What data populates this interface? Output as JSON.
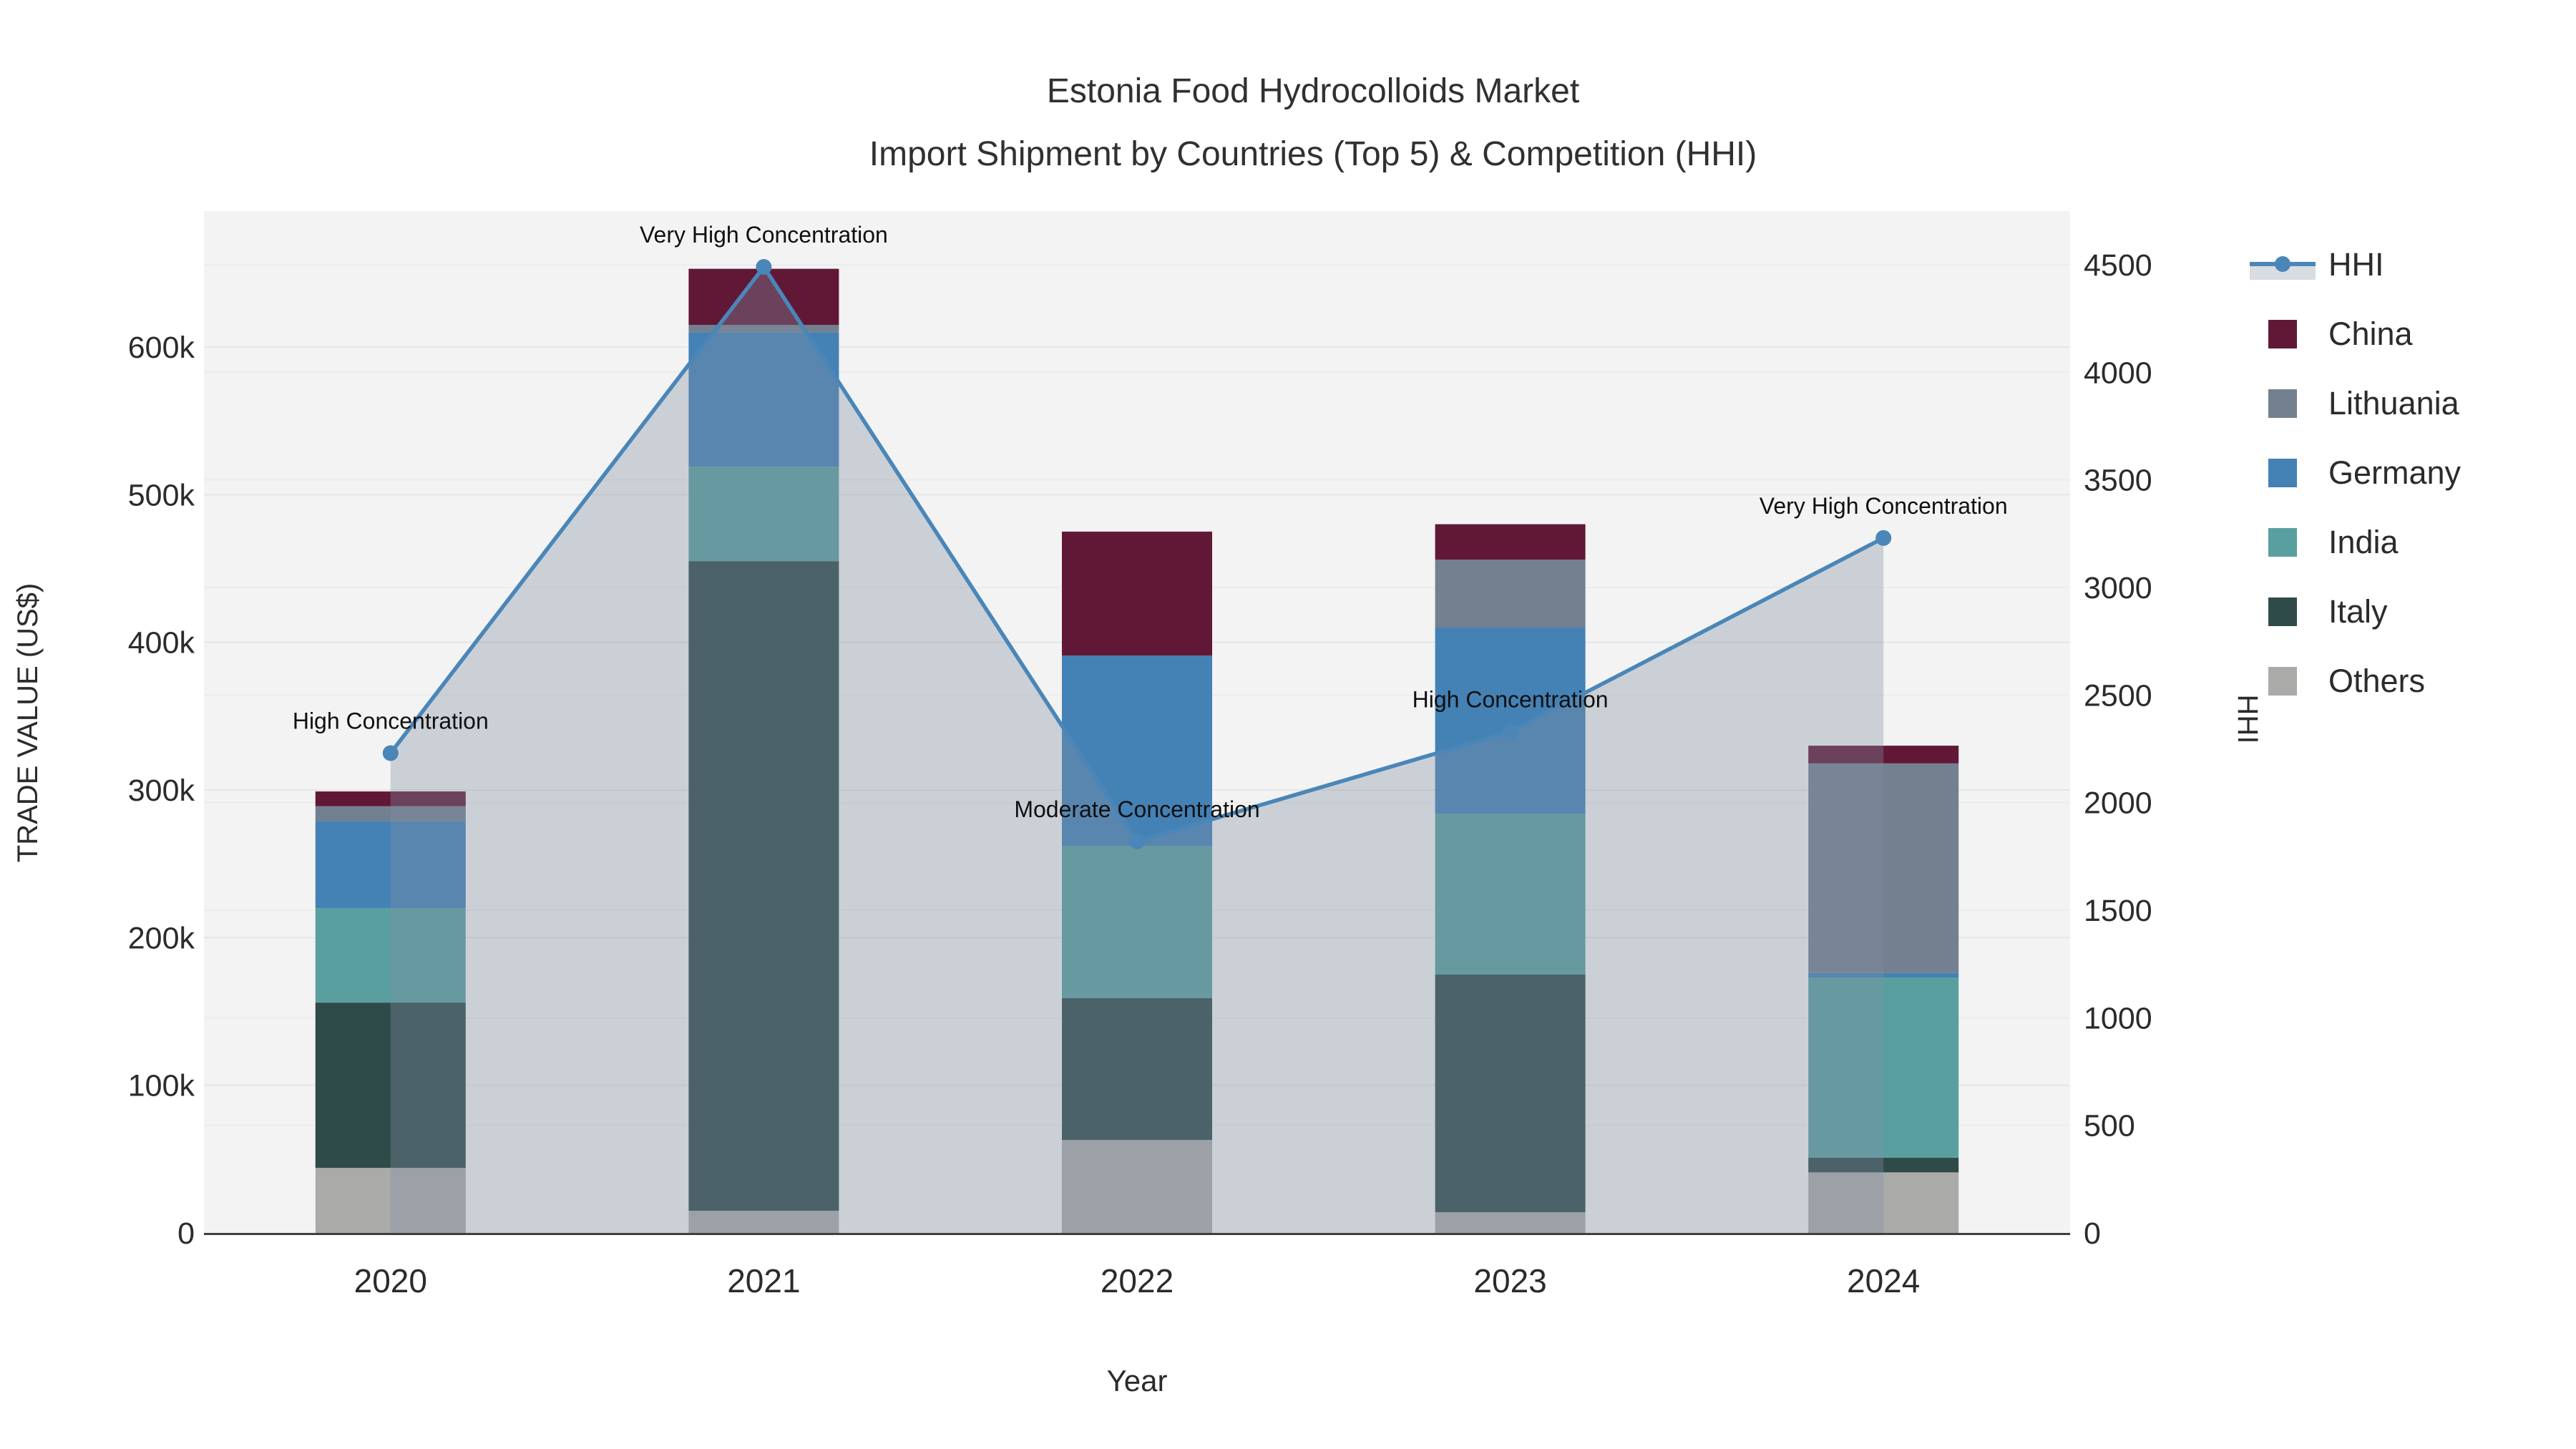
{
  "title": {
    "line1": "Estonia Food Hydrocolloids Market",
    "line2": "Import Shipment by Countries (Top 5) & Competition (HHI)"
  },
  "axes": {
    "x": {
      "title": "Year",
      "ticks": [
        "2020",
        "2021",
        "2022",
        "2023",
        "2024"
      ]
    },
    "y_left": {
      "title": "TRADE VALUE (US$)",
      "tick_labels": [
        "0",
        "100k",
        "200k",
        "300k",
        "400k",
        "500k",
        "600k"
      ],
      "tick_values_thousands": [
        0,
        100,
        200,
        300,
        400,
        500,
        600
      ]
    },
    "y_right": {
      "title": "HHI",
      "tick_labels": [
        "0",
        "500",
        "1000",
        "1500",
        "2000",
        "2500",
        "3000",
        "3500",
        "4000",
        "4500"
      ],
      "tick_values": [
        0,
        500,
        1000,
        1500,
        2000,
        2500,
        3000,
        3500,
        4000,
        4500
      ]
    }
  },
  "legend": {
    "items": [
      {
        "label": "HHI",
        "type": "line"
      },
      {
        "label": "China",
        "type": "swatch"
      },
      {
        "label": "Lithuania",
        "type": "swatch"
      },
      {
        "label": "Germany",
        "type": "swatch"
      },
      {
        "label": "India",
        "type": "swatch"
      },
      {
        "label": "Italy",
        "type": "swatch"
      },
      {
        "label": "Others",
        "type": "swatch"
      }
    ]
  },
  "annotations": [
    {
      "year": "2020",
      "text": "High Concentration"
    },
    {
      "year": "2021",
      "text": "Very High Concentration"
    },
    {
      "year": "2022",
      "text": "Moderate Concentration"
    },
    {
      "year": "2023",
      "text": "High Concentration"
    },
    {
      "year": "2024",
      "text": "Very High Concentration"
    }
  ],
  "colors": {
    "China": "#611837",
    "Lithuania": "#72808f",
    "Germany": "#4481b5",
    "India": "#5a9fa0",
    "Italy": "#2f4b49",
    "Others": "#aaaba9",
    "hhi_line": "#4a86b8",
    "area_fill": "rgba(128,144,164,0.35)",
    "legend_area_swatch": "#d8dde3",
    "plot_bg": "#f3f3f3",
    "grid_left": "#e4e5e4",
    "grid_right": "#ebecEB",
    "axis_line": "#3f3f3f",
    "tick_text": "#2b2b2b",
    "annotation_text": "#101010"
  },
  "chart_data": {
    "type": "combo: stacked bar (left axis) + line with area (right axis)",
    "categories": [
      "2020",
      "2021",
      "2022",
      "2023",
      "2024"
    ],
    "unit_left": "thousand US$",
    "stack_order_bottom_to_top": [
      "Others",
      "Italy",
      "India",
      "Germany",
      "Lithuania",
      "China"
    ],
    "series": [
      {
        "name": "China",
        "values": [
          10,
          38,
          84,
          24,
          12
        ]
      },
      {
        "name": "Lithuania",
        "values": [
          10,
          5,
          0,
          46,
          142
        ]
      },
      {
        "name": "Germany",
        "values": [
          59,
          91,
          129,
          126,
          3
        ]
      },
      {
        "name": "India",
        "values": [
          64,
          64,
          103,
          109,
          122
        ]
      },
      {
        "name": "Italy",
        "values": [
          112,
          440,
          96,
          161,
          10
        ]
      },
      {
        "name": "Others",
        "values": [
          44,
          15,
          63,
          14,
          41
        ]
      }
    ],
    "bar_totals_thousands": [
      299,
      653,
      475,
      480,
      330
    ],
    "hhi_series": {
      "name": "HHI",
      "values": [
        2230,
        4490,
        1820,
        2330,
        3230
      ]
    },
    "ylim_left_thousands": [
      0,
      692
    ],
    "ylim_right": [
      0,
      4650
    ],
    "xlabel": "Year",
    "ylabel_left": "TRADE VALUE (US$)",
    "ylabel_right": "HHI",
    "grid": true,
    "legend_position": "right"
  }
}
